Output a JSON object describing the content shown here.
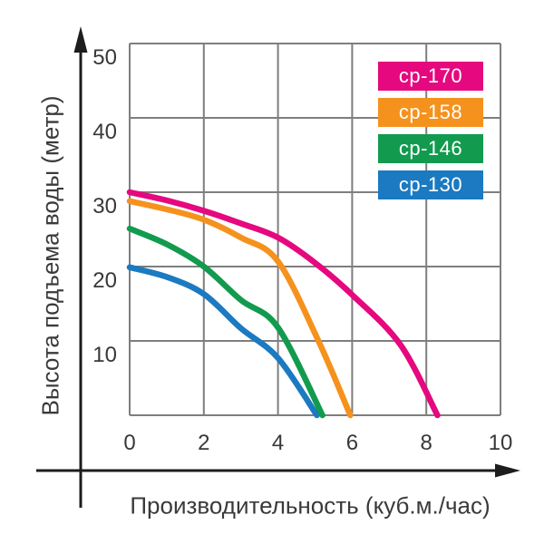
{
  "chart_data": {
    "type": "line",
    "title": "",
    "xlabel": "Производительность (куб.м./час)",
    "ylabel": "Высота подъема воды (метр)",
    "xlim": [
      0,
      10
    ],
    "ylim": [
      0,
      50
    ],
    "xticks": [
      0,
      2,
      4,
      6,
      8,
      10
    ],
    "yticks": [
      50,
      40,
      30,
      20,
      10
    ],
    "grid": true,
    "legend_position": "top-right",
    "axis_arrow_style": "arrowheads on both axes",
    "colors": {
      "grid": "#7e7e7e",
      "axis": "#1d1d1d",
      "text": "#3a3a3a",
      "legend_text": "#ffffff"
    },
    "series": [
      {
        "name": "ср-170",
        "color": "#e5087e",
        "points": [
          [
            0,
            30.0
          ],
          [
            1,
            28.9
          ],
          [
            2,
            27.5
          ],
          [
            3,
            25.8
          ],
          [
            4,
            23.9
          ],
          [
            5,
            20.5
          ],
          [
            6,
            16.2
          ],
          [
            7.3,
            9.5
          ],
          [
            8.3,
            0
          ]
        ]
      },
      {
        "name": "ср-158",
        "color": "#f5921e",
        "points": [
          [
            0,
            28.8
          ],
          [
            1,
            27.7
          ],
          [
            2,
            26.3
          ],
          [
            3,
            23.9
          ],
          [
            4,
            20.7
          ],
          [
            5.1,
            9.9
          ],
          [
            5.95,
            0
          ]
        ]
      },
      {
        "name": "ср-146",
        "color": "#129b4e",
        "points": [
          [
            0,
            25.1
          ],
          [
            1,
            23.0
          ],
          [
            2,
            20.0
          ],
          [
            3,
            15.5
          ],
          [
            4,
            11.8
          ],
          [
            5.2,
            0
          ]
        ]
      },
      {
        "name": "ср-130",
        "color": "#1b7ac1",
        "points": [
          [
            0,
            19.9
          ],
          [
            1,
            18.6
          ],
          [
            2,
            16.3
          ],
          [
            3,
            11.7
          ],
          [
            4,
            7.7
          ],
          [
            5.05,
            0
          ]
        ]
      }
    ]
  }
}
